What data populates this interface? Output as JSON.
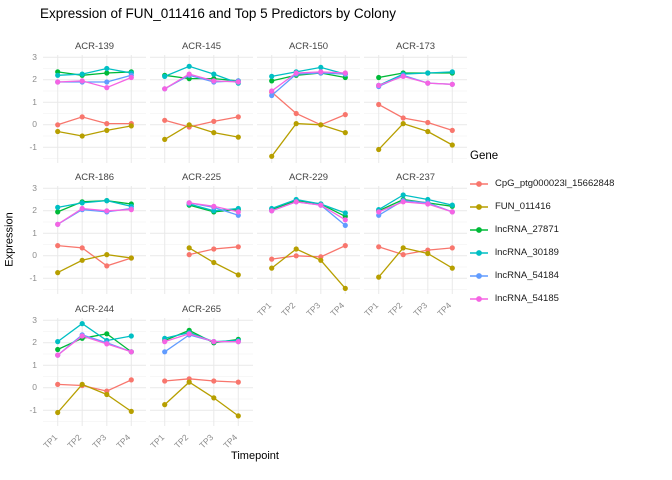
{
  "chart_data": {
    "type": "line",
    "title": "Expression of FUN_011416 and Top 5 Predictors by Colony",
    "xlabel": "Timepoint",
    "ylabel": "Expression",
    "legend_title": "Gene",
    "legend_position": "right",
    "grid": true,
    "categories": [
      "TP1",
      "TP2",
      "TP3",
      "TP4"
    ],
    "y_ticks": [
      3,
      2,
      1,
      0,
      -1
    ],
    "y_minor_ticks": [
      2.5,
      1.5,
      0.5,
      -0.5,
      -1.5
    ],
    "ylim": [
      -1.7,
      3.1
    ],
    "genes": [
      {
        "name": "CpG_ptg000023l_15662848",
        "color": "#F8766D"
      },
      {
        "name": "FUN_011416",
        "color": "#B79F00"
      },
      {
        "name": "lncRNA_27871",
        "color": "#00BA38"
      },
      {
        "name": "lncRNA_30189",
        "color": "#00BFC4"
      },
      {
        "name": "lncRNA_54184",
        "color": "#619CFF"
      },
      {
        "name": "lncRNA_54185",
        "color": "#F564E3"
      }
    ],
    "facets": [
      {
        "colony": "ACR-139",
        "series": [
          [
            0.0,
            0.35,
            0.05,
            0.05
          ],
          [
            -0.3,
            -0.5,
            -0.25,
            -0.05
          ],
          [
            2.35,
            2.2,
            2.3,
            2.35
          ],
          [
            2.2,
            2.25,
            2.5,
            2.3
          ],
          [
            1.9,
            1.9,
            1.9,
            2.2
          ],
          [
            1.9,
            1.95,
            1.65,
            2.1
          ]
        ]
      },
      {
        "colony": "ACR-145",
        "series": [
          [
            0.2,
            -0.1,
            0.15,
            0.35
          ],
          [
            -0.65,
            0.0,
            -0.35,
            -0.55
          ],
          [
            2.2,
            2.05,
            2.05,
            1.95
          ],
          [
            2.15,
            2.6,
            2.25,
            1.85
          ],
          [
            1.6,
            2.2,
            1.9,
            1.95
          ],
          [
            1.6,
            2.25,
            1.95,
            1.9
          ]
        ]
      },
      {
        "colony": "ACR-150",
        "series": [
          [
            1.45,
            0.5,
            0.0,
            0.45
          ],
          [
            -1.4,
            0.05,
            0.0,
            -0.35
          ],
          [
            1.95,
            2.2,
            2.3,
            2.1
          ],
          [
            2.15,
            2.35,
            2.55,
            2.25
          ],
          [
            1.3,
            2.25,
            2.3,
            2.25
          ],
          [
            1.5,
            2.3,
            2.35,
            2.3
          ]
        ]
      },
      {
        "colony": "ACR-173",
        "series": [
          [
            0.9,
            0.3,
            0.1,
            -0.25
          ],
          [
            -1.1,
            0.05,
            -0.3,
            -0.9
          ],
          [
            2.1,
            2.3,
            2.3,
            2.3
          ],
          [
            1.75,
            2.25,
            2.3,
            2.35
          ],
          [
            1.7,
            2.2,
            1.85,
            1.8
          ],
          [
            1.75,
            2.15,
            1.85,
            1.8
          ]
        ]
      },
      {
        "colony": "ACR-186",
        "series": [
          [
            0.45,
            0.35,
            -0.45,
            -0.1
          ],
          [
            -0.75,
            -0.2,
            0.05,
            -0.1
          ],
          [
            1.95,
            2.4,
            2.45,
            2.3
          ],
          [
            2.15,
            2.35,
            2.45,
            2.2
          ],
          [
            1.4,
            2.05,
            1.95,
            2.1
          ],
          [
            1.4,
            2.1,
            2.0,
            2.05
          ]
        ]
      },
      {
        "colony": "ACR-225",
        "series": [
          [
            null,
            0.05,
            0.3,
            0.4
          ],
          [
            null,
            0.35,
            -0.3,
            -0.85
          ],
          [
            null,
            2.25,
            1.95,
            2.05
          ],
          [
            null,
            2.3,
            2.0,
            2.1
          ],
          [
            null,
            2.35,
            2.15,
            1.8
          ],
          [
            null,
            2.35,
            2.2,
            1.95
          ]
        ]
      },
      {
        "colony": "ACR-229",
        "series": [
          [
            -0.15,
            0.0,
            -0.05,
            0.45
          ],
          [
            -0.55,
            0.3,
            -0.2,
            -1.45
          ],
          [
            2.05,
            2.45,
            2.3,
            1.75
          ],
          [
            2.1,
            2.5,
            2.3,
            1.9
          ],
          [
            2.0,
            2.4,
            2.25,
            1.35
          ],
          [
            2.0,
            2.4,
            2.25,
            1.6
          ]
        ]
      },
      {
        "colony": "ACR-237",
        "series": [
          [
            0.4,
            0.05,
            0.25,
            0.35
          ],
          [
            -0.95,
            0.35,
            0.1,
            -0.55
          ],
          [
            2.0,
            2.5,
            2.35,
            2.2
          ],
          [
            2.05,
            2.7,
            2.5,
            2.25
          ],
          [
            1.8,
            2.45,
            2.35,
            1.95
          ],
          [
            1.95,
            2.4,
            2.3,
            1.95
          ]
        ]
      },
      {
        "colony": "ACR-244",
        "series": [
          [
            0.15,
            0.1,
            -0.15,
            0.35
          ],
          [
            -1.1,
            0.15,
            -0.3,
            -1.05
          ],
          [
            1.7,
            2.2,
            2.4,
            1.6
          ],
          [
            2.05,
            2.85,
            2.1,
            2.3
          ],
          [
            1.45,
            2.35,
            2.0,
            1.6
          ],
          [
            1.45,
            2.3,
            1.95,
            1.6
          ]
        ]
      },
      {
        "colony": "ACR-265",
        "series": [
          [
            0.3,
            0.4,
            0.3,
            0.25
          ],
          [
            -0.75,
            0.25,
            -0.45,
            -1.25
          ],
          [
            2.1,
            2.55,
            2.0,
            2.15
          ],
          [
            2.2,
            2.45,
            2.05,
            2.1
          ],
          [
            1.6,
            2.35,
            2.05,
            2.05
          ],
          [
            2.05,
            2.4,
            2.05,
            2.05
          ]
        ]
      }
    ],
    "colors": {
      "grid_major": "#e9e9e9",
      "grid_minor": "#f4f4f4",
      "axis_text": "#8c8c8c",
      "strip_text": "#454545"
    }
  }
}
